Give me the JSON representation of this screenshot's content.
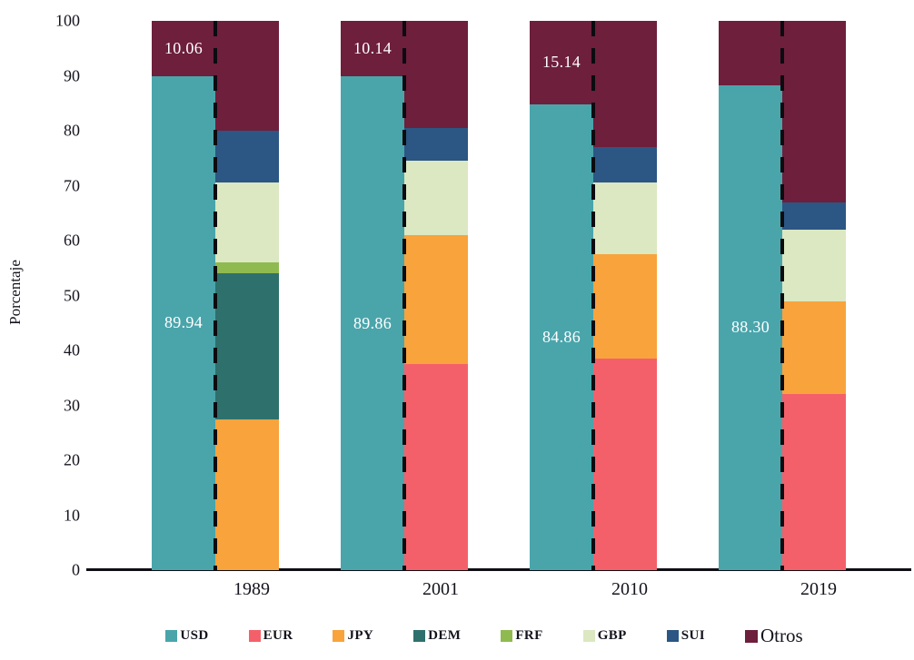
{
  "chart_data": {
    "type": "bar",
    "title": "",
    "ylabel": "Porcentaje",
    "xlabel": "",
    "ylim": [
      0,
      100
    ],
    "grid": false,
    "legend_position": "bottom",
    "yticks": [
      "0",
      "10",
      "20",
      "30",
      "40",
      "50",
      "60",
      "70",
      "80",
      "90",
      "100"
    ],
    "categories": [
      "1989",
      "2001",
      "2010",
      "2019"
    ],
    "usd_share_bars": {
      "description": "left bar of each pair: USD share vs Otros",
      "series": [
        {
          "name": "USD",
          "values": [
            89.94,
            89.86,
            84.86,
            88.3
          ],
          "labels": [
            "89.94",
            "89.86",
            "84.86",
            "88.30"
          ]
        },
        {
          "name": "Otros",
          "values": [
            10.06,
            10.14,
            15.14,
            11.7
          ],
          "labels": [
            "10.06",
            "10.14",
            "15.14",
            ""
          ]
        }
      ]
    },
    "currency_breakdown_bars": {
      "description": "right bar of each pair: non-USD currency composition, stacked bottom to top",
      "stacks": [
        {
          "year": "1989",
          "segments": [
            [
              "JPY",
              27.5
            ],
            [
              "DEM",
              26.5
            ],
            [
              "FRF",
              2.0
            ],
            [
              "GBP",
              14.5
            ],
            [
              "SUI",
              9.5
            ],
            [
              "Otros",
              20.0
            ]
          ]
        },
        {
          "year": "2001",
          "segments": [
            [
              "EUR",
              37.5
            ],
            [
              "JPY",
              23.5
            ],
            [
              "GBP",
              13.5
            ],
            [
              "SUI",
              6.0
            ],
            [
              "Otros",
              19.5
            ]
          ]
        },
        {
          "year": "2010",
          "segments": [
            [
              "EUR",
              38.5
            ],
            [
              "JPY",
              19.0
            ],
            [
              "GBP",
              13.0
            ],
            [
              "SUI",
              6.5
            ],
            [
              "Otros",
              23.0
            ]
          ]
        },
        {
          "year": "2019",
          "segments": [
            [
              "EUR",
              32.0
            ],
            [
              "JPY",
              17.0
            ],
            [
              "GBP",
              13.0
            ],
            [
              "SUI",
              5.0
            ],
            [
              "Otros",
              33.0
            ]
          ]
        }
      ]
    },
    "legend": [
      "USD",
      "EUR",
      "JPY",
      "DEM",
      "FRF",
      "GBP",
      "SUI",
      "Otros"
    ],
    "colors": {
      "USD": "#4AA5AB",
      "EUR": "#F4606A",
      "JPY": "#F9A33D",
      "DEM": "#2E706C",
      "FRF": "#8FBA50",
      "GBP": "#DBE8C1",
      "SUI": "#2C5683",
      "Otros": "#6D1F3C"
    },
    "text_color": "#14141E",
    "axis_color": "#0E0E14",
    "bar_value_label_color": "#FFFFFF"
  }
}
